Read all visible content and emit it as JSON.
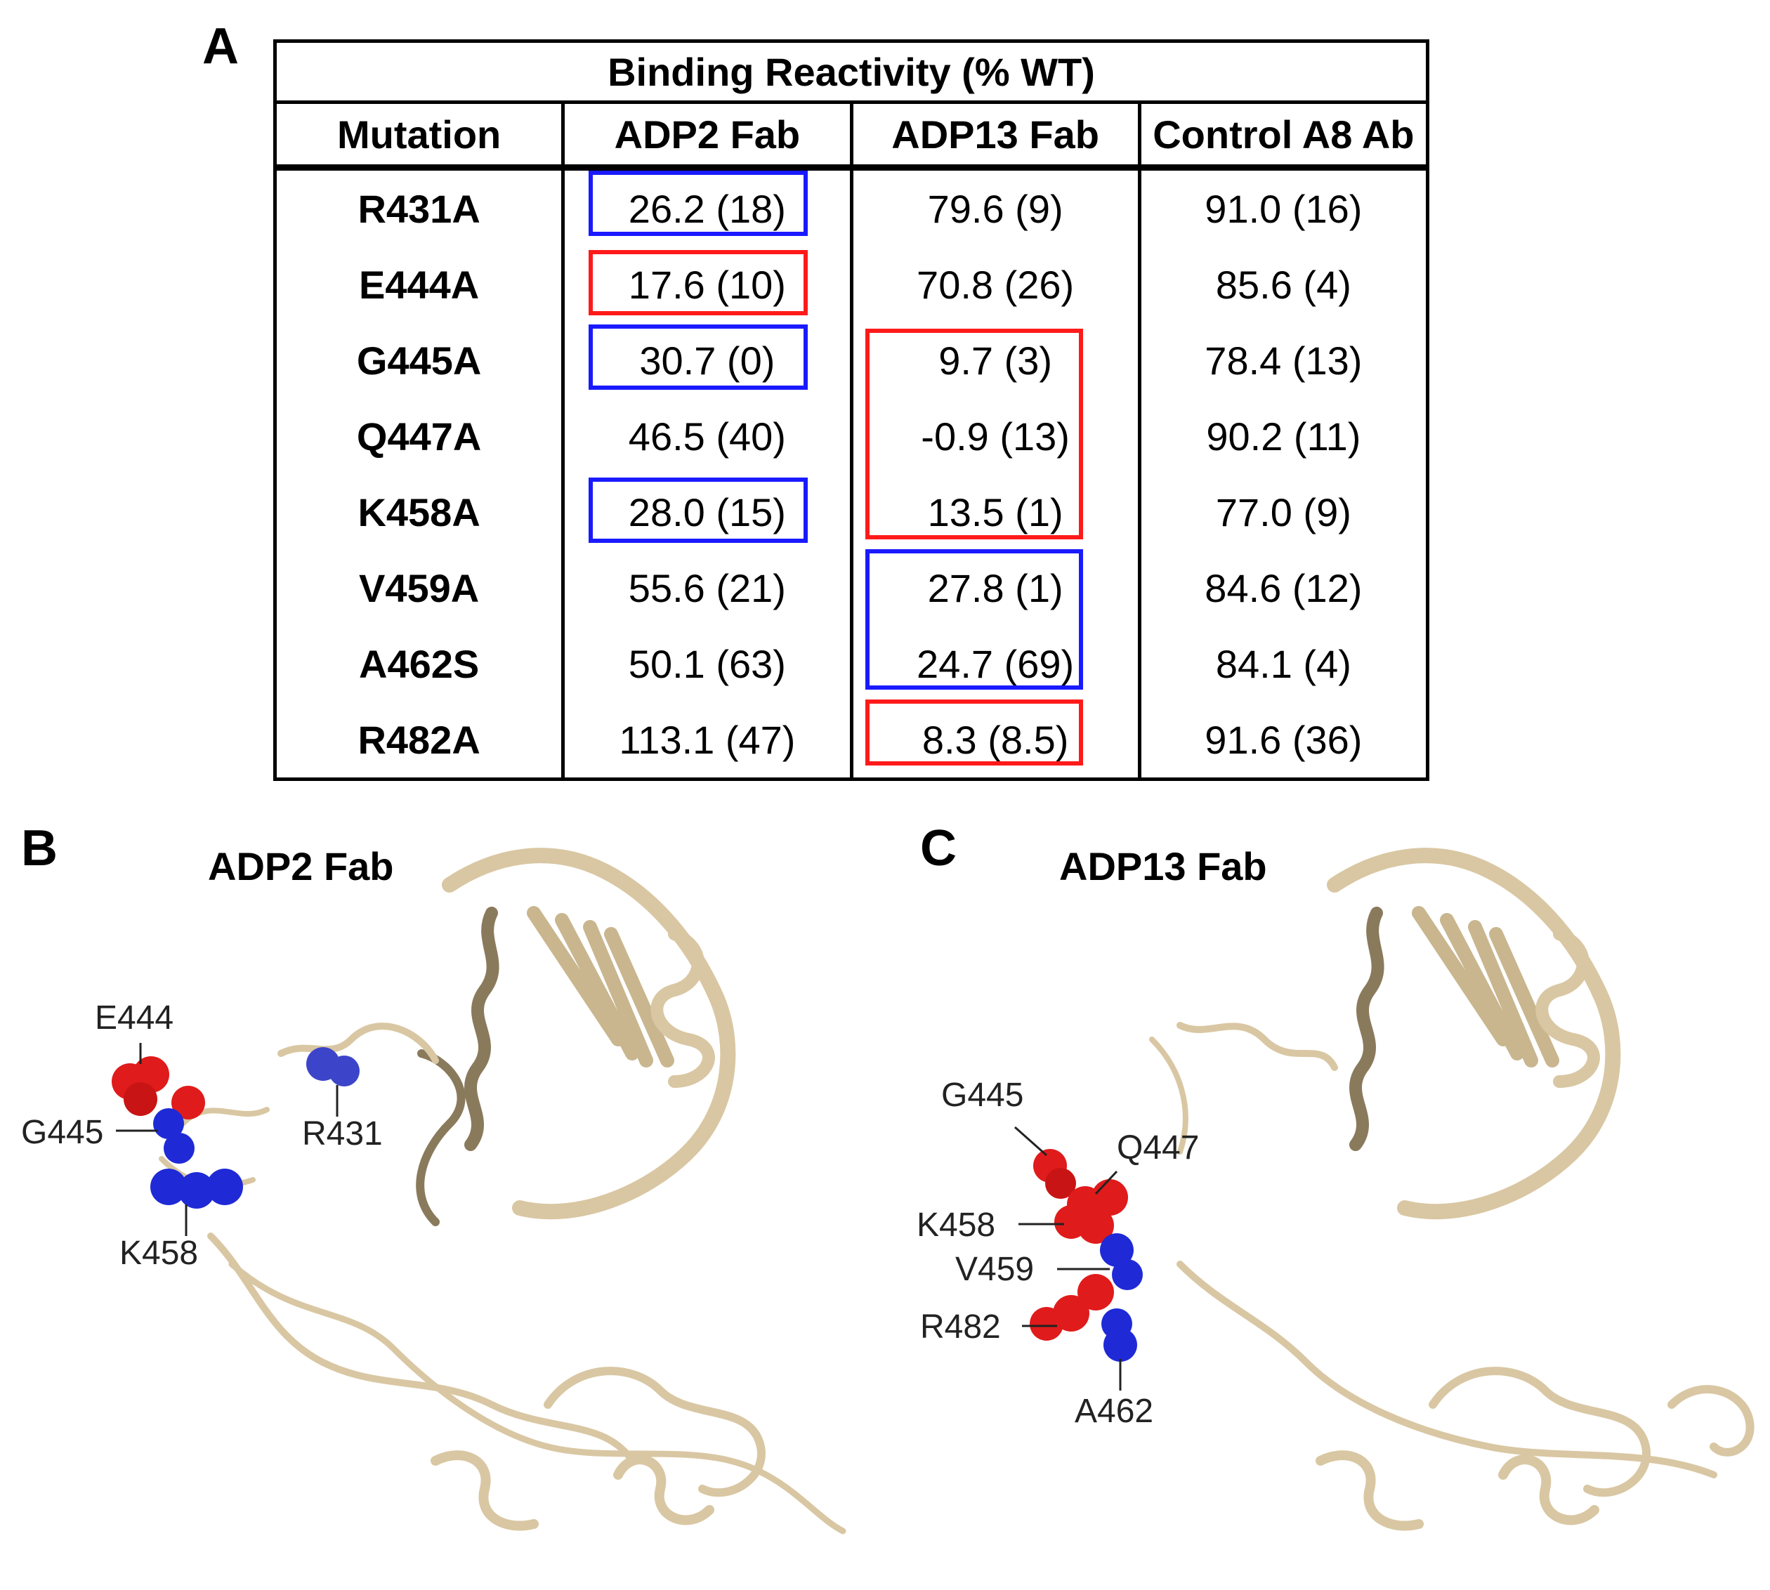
{
  "panels": {
    "a": "A",
    "b": "B",
    "c": "C"
  },
  "table": {
    "title": "Binding Reactivity (% WT)",
    "columns": [
      "Mutation",
      "ADP2 Fab",
      "ADP13 Fab",
      "Control A8 Ab"
    ],
    "rows": [
      {
        "mutation": "R431A",
        "adp2": "26.2 (18)",
        "adp13": "79.6 (9)",
        "a8": "91.0 (16)"
      },
      {
        "mutation": "E444A",
        "adp2": "17.6 (10)",
        "adp13": "70.8 (26)",
        "a8": "85.6 (4)"
      },
      {
        "mutation": "G445A",
        "adp2": "30.7 (0)",
        "adp13": "9.7 (3)",
        "a8": "78.4 (13)"
      },
      {
        "mutation": "Q447A",
        "adp2": "46.5 (40)",
        "adp13": "-0.9 (13)",
        "a8": "90.2 (11)"
      },
      {
        "mutation": "K458A",
        "adp2": "28.0 (15)",
        "adp13": "13.5 (1)",
        "a8": "77.0 (9)"
      },
      {
        "mutation": "V459A",
        "adp2": "55.6 (21)",
        "adp13": "27.8 (1)",
        "a8": "84.6 (12)"
      },
      {
        "mutation": "A462S",
        "adp2": "50.1 (63)",
        "adp13": "24.7 (69)",
        "a8": "84.1 (4)"
      },
      {
        "mutation": "R482A",
        "adp2": "113.1 (47)",
        "adp13": "8.3 (8.5)",
        "a8": "91.6 (36)"
      }
    ],
    "highlight_colors": {
      "blue": "#1a1aff",
      "red": "#ff1a1a"
    }
  },
  "panel_b": {
    "title": "ADP2 Fab",
    "labels": {
      "e444": "E444",
      "g445": "G445",
      "k458": "K458",
      "r431": "R431"
    }
  },
  "panel_c": {
    "title": "ADP13 Fab",
    "labels": {
      "g445": "G445",
      "q447": "Q447",
      "k458": "K458",
      "v459": "V459",
      "r482": "R482",
      "a462": "A462"
    }
  },
  "colors": {
    "ribbon": "#d9c7a3",
    "ribbon_dark": "#8a7a5c",
    "red_atom": "#e01b1b",
    "blue_atom": "#1f2ad6"
  }
}
